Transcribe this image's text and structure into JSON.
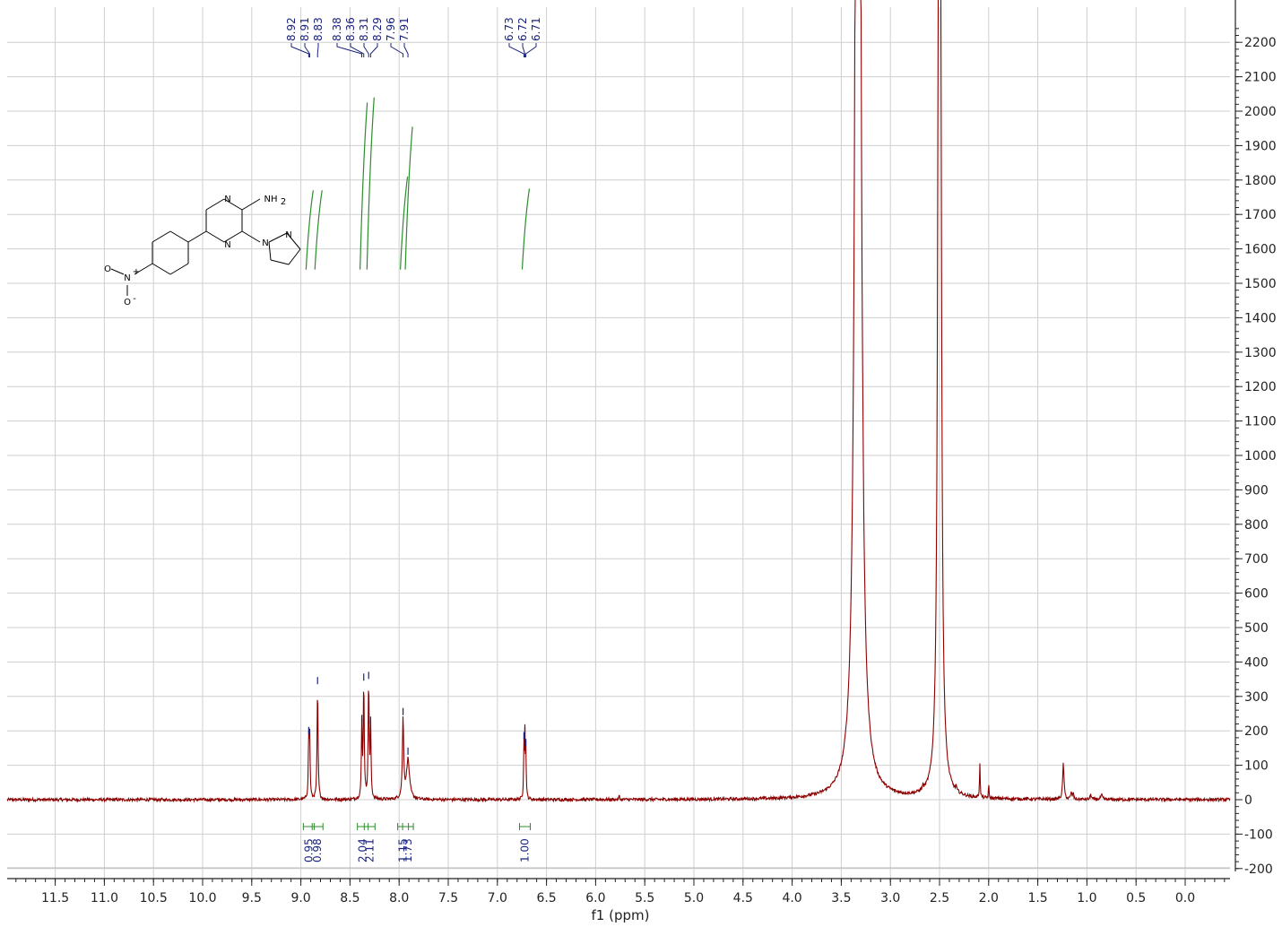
{
  "chart_data": {
    "type": "line",
    "title": "",
    "xlabel": "f1 (ppm)",
    "ylabel": "",
    "xlim": [
      11.95,
      -0.5
    ],
    "ylim": [
      -215,
      2290
    ],
    "x_reversed": true,
    "grid": true,
    "x_ticks": [
      "11.5",
      "11.0",
      "10.5",
      "10.0",
      "9.5",
      "9.0",
      "8.5",
      "8.0",
      "7.5",
      "7.0",
      "6.5",
      "6.0",
      "5.5",
      "5.0",
      "4.5",
      "4.0",
      "3.5",
      "3.0",
      "2.5",
      "2.0",
      "1.5",
      "1.0",
      "0.5",
      "0.0"
    ],
    "y_ticks": [
      "-200",
      "-100",
      "0",
      "100",
      "200",
      "300",
      "400",
      "500",
      "600",
      "700",
      "800",
      "900",
      "1000",
      "1100",
      "1200",
      "1300",
      "1400",
      "1500",
      "1600",
      "1700",
      "1800",
      "1900",
      "2000",
      "2100",
      "2200"
    ],
    "y_axis_position": "right",
    "spectrum_color": "#8b0000",
    "integral_color": "#2e8b2e",
    "label_color": "#1a237e",
    "peaks": [
      {
        "ppm": 8.92,
        "height": 175,
        "width": 0.005
      },
      {
        "ppm": 8.91,
        "height": 170,
        "width": 0.005
      },
      {
        "ppm": 8.83,
        "height": 320,
        "width": 0.006
      },
      {
        "ppm": 8.38,
        "height": 210,
        "width": 0.005
      },
      {
        "ppm": 8.36,
        "height": 330,
        "width": 0.006
      },
      {
        "ppm": 8.31,
        "height": 335,
        "width": 0.006
      },
      {
        "ppm": 8.29,
        "height": 205,
        "width": 0.005
      },
      {
        "ppm": 7.96,
        "height": 230,
        "width": 0.008
      },
      {
        "ppm": 7.91,
        "height": 115,
        "width": 0.018
      },
      {
        "ppm": 6.73,
        "height": 160,
        "width": 0.004
      },
      {
        "ppm": 6.72,
        "height": 175,
        "width": 0.004
      },
      {
        "ppm": 6.71,
        "height": 140,
        "width": 0.004
      },
      {
        "ppm": 5.76,
        "height": 12,
        "width": 0.004
      },
      {
        "ppm": 3.33,
        "height": 8000,
        "width": 0.02
      },
      {
        "ppm": 3.28,
        "height": 55,
        "width": 0.005
      },
      {
        "ppm": 2.67,
        "height": 16,
        "width": 0.004
      },
      {
        "ppm": 2.5,
        "height": 8000,
        "width": 0.01
      },
      {
        "ppm": 2.33,
        "height": 14,
        "width": 0.004
      },
      {
        "ppm": 2.09,
        "height": 100,
        "width": 0.004
      },
      {
        "ppm": 2.0,
        "height": 45,
        "width": 0.003
      },
      {
        "ppm": 1.24,
        "height": 105,
        "width": 0.008
      },
      {
        "ppm": 1.16,
        "height": 20,
        "width": 0.006
      },
      {
        "ppm": 1.14,
        "height": 18,
        "width": 0.006
      },
      {
        "ppm": 0.96,
        "height": 15,
        "width": 0.007
      },
      {
        "ppm": 0.85,
        "height": 12,
        "width": 0.01
      }
    ],
    "peak_labels": [
      "8.92",
      "8.91",
      "8.83",
      "8.38",
      "8.36",
      "8.31",
      "8.29",
      "7.96",
      "7.91",
      "6.73",
      "6.72",
      "6.71"
    ],
    "peak_label_positions": [
      8.92,
      8.91,
      8.83,
      8.38,
      8.36,
      8.31,
      8.29,
      7.96,
      7.91,
      6.73,
      6.72,
      6.71
    ],
    "integrals": [
      {
        "ppm": 8.92,
        "value": "0.95",
        "low": 1540,
        "high": 1770
      },
      {
        "ppm": 8.83,
        "value": "0.98",
        "low": 1540,
        "high": 1770
      },
      {
        "ppm": 8.37,
        "value": "2.04",
        "low": 1540,
        "high": 2025
      },
      {
        "ppm": 8.3,
        "value": "2.11",
        "low": 1540,
        "high": 2040
      },
      {
        "ppm": 7.96,
        "value": "1.15",
        "low": 1540,
        "high": 1810
      },
      {
        "ppm": 7.91,
        "value": "1.73",
        "low": 1540,
        "high": 1955
      },
      {
        "ppm": 6.72,
        "value": "1.00",
        "low": 1540,
        "high": 1775
      }
    ],
    "structure_labels": {
      "n1": "N",
      "n2": "N",
      "nh2": "NH",
      "nh2_sub": "2",
      "pyr_n1": "N",
      "pyr_n2": "N",
      "nitro_n": "N",
      "nitro_n_charge": "+",
      "nitro_o1": "O",
      "nitro_o2": "O",
      "nitro_o2_charge": "-"
    }
  }
}
